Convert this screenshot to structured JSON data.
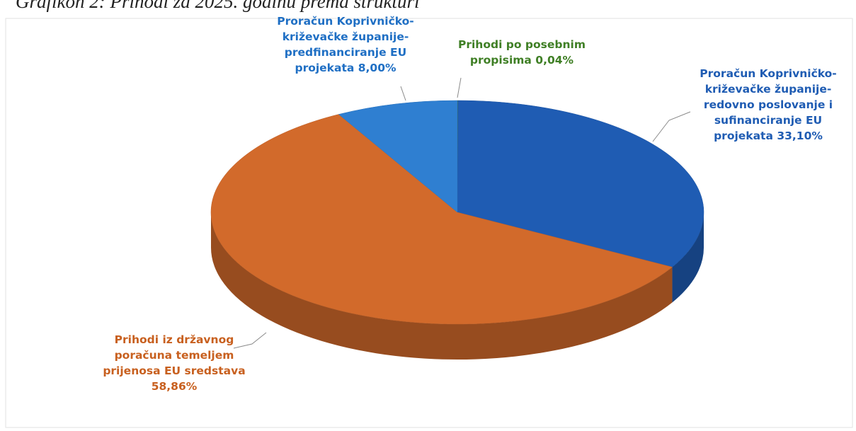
{
  "chart_data": {
    "type": "pie3d",
    "title": "Grafikon 2: Prihodi za 2025. godinu prema strukturi",
    "categories": [
      "Prihodi po posebnim propisima",
      "Proračun Koprivničko-križevačke županije-redovno poslovanje i sufinanciranje EU projekata",
      "Prihodi iz državnog poračuna temeljem prijenosa EU sredstava",
      "Proračun Koprivničko-križevačke županije-predfinanciranje EU projekata"
    ],
    "values": [
      0.04,
      33.1,
      58.86,
      8.0
    ],
    "value_labels": [
      "0,04%",
      "33,10%",
      "58,86%",
      "8,00%"
    ],
    "colors": [
      "#4e8f2e",
      "#1f5cb3",
      "#d26a2b",
      "#2f7fd1"
    ]
  }
}
